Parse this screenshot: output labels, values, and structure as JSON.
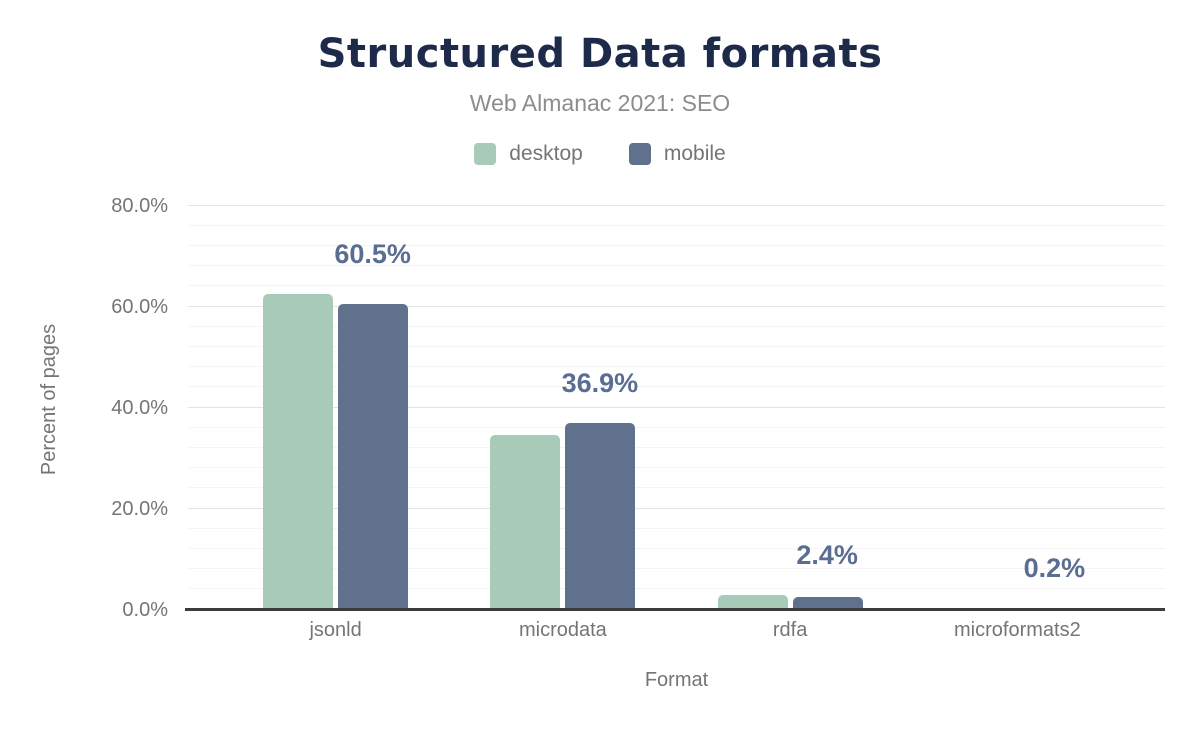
{
  "header": {
    "title": "Structured Data formats",
    "subtitle": "Web Almanac 2021: SEO"
  },
  "palette": {
    "title_text": "#1e2a4a",
    "subtitle_text": "#8c8c8c",
    "axis_text": "#757575",
    "value_label_text": "#5a6d92",
    "desktop": "#a7cab9",
    "mobile": "#5f718c",
    "axis_line": "#3b3b3b",
    "gridline_major": "#e4e4e4",
    "gridline_minor": "#f4f4f4"
  },
  "chart_data": {
    "type": "bar",
    "title": "Structured Data formats",
    "subtitle": "Web Almanac 2021: SEO",
    "categories": [
      "jsonld",
      "microdata",
      "rdfa",
      "microformats2"
    ],
    "series": [
      {
        "name": "desktop",
        "color": "#a7cab9",
        "values": [
          62.4,
          34.6,
          2.9,
          0.3
        ]
      },
      {
        "name": "mobile",
        "color": "#5f718c",
        "values": [
          60.5,
          36.9,
          2.4,
          0.2
        ]
      }
    ],
    "data_labels": [
      "60.5%",
      "36.9%",
      "2.4%",
      "0.2%"
    ],
    "data_labels_series": "mobile",
    "xlabel": "Format",
    "ylabel": "Percent of pages",
    "ylim": [
      0,
      80
    ],
    "yticks": [
      "0.0%",
      "20.0%",
      "40.0%",
      "60.0%",
      "80.0%"
    ],
    "grid": {
      "major_step": 20,
      "minor_step": 4
    },
    "legend_position": "top"
  }
}
